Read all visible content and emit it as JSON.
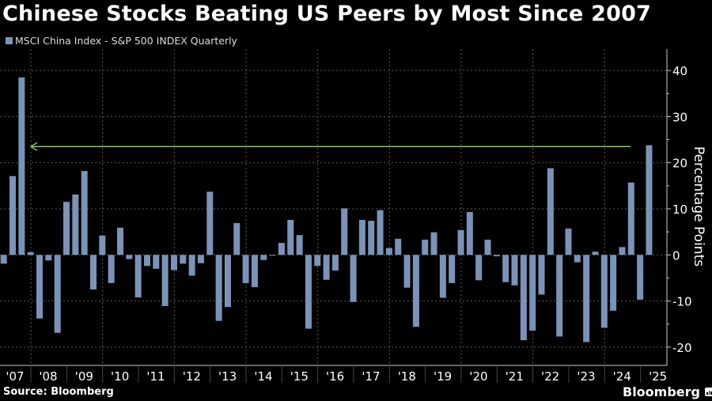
{
  "title": "Chinese Stocks Beating US Peers by Most Since 2007",
  "source": "Source: Bloomberg",
  "brand": "Bloomberg",
  "colors": {
    "bar": "#7b93b8",
    "arrow": "#9ccc65",
    "grid": "#5a5a5a",
    "axis": "#cccccc"
  },
  "chart_data": {
    "type": "bar",
    "title": "Chinese Stocks Beating US Peers by Most Since 2007",
    "legend": [
      "MSCI China Index - S&P 500 INDEX Quarterly"
    ],
    "legend_position": "top-left",
    "xlabel": "",
    "ylabel": "Percentage Points",
    "y_axis_side": "right",
    "ylim": [
      -24,
      45
    ],
    "yticks": [
      -20,
      -10,
      0,
      10,
      20,
      30,
      40
    ],
    "grid": true,
    "frequency": "quarterly",
    "x_tick_labels": [
      "'07",
      "'08",
      "'09",
      "'10",
      "'11",
      "'12",
      "'13",
      "'14",
      "'15",
      "'16",
      "'17",
      "'18",
      "'19",
      "'20",
      "'21",
      "'22",
      "'23",
      "'24",
      "'25"
    ],
    "series": [
      {
        "name": "MSCI China Index - S&P 500 INDEX Quarterly",
        "values": [
          -1.9,
          17.1,
          38.5,
          0.6,
          -13.8,
          -1.2,
          -16.9,
          11.5,
          13.1,
          18.2,
          -7.5,
          4.2,
          -6.1,
          5.9,
          -0.9,
          -9.2,
          -2.4,
          -3.0,
          -11.1,
          -3.3,
          -1.9,
          -4.5,
          -1.8,
          13.7,
          -14.3,
          -11.3,
          6.9,
          -6.1,
          -7.0,
          -1.1,
          -0.1,
          2.6,
          7.6,
          4.3,
          -16.0,
          -2.4,
          -5.4,
          -3.4,
          10.1,
          -10.2,
          7.6,
          7.4,
          9.7,
          1.5,
          3.5,
          -7.1,
          -15.6,
          3.3,
          4.9,
          -9.3,
          -6.1,
          5.4,
          9.3,
          -5.5,
          3.3,
          -0.3,
          -5.9,
          -6.6,
          -18.5,
          -16.4,
          -8.6,
          18.8,
          -17.7,
          5.7,
          -1.6,
          -18.9,
          0.7,
          -15.8,
          -12.1,
          1.7,
          15.7,
          -9.7,
          23.8
        ]
      }
    ],
    "annotations": [
      {
        "type": "arrow",
        "value": 23.5,
        "from": "latest quarter",
        "to": "2007 peak",
        "direction": "left"
      }
    ]
  }
}
